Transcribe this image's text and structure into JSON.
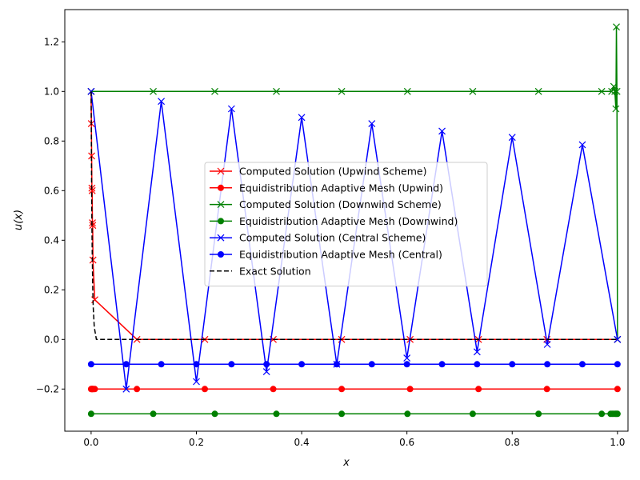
{
  "chart_data": {
    "type": "line",
    "title": "",
    "xlabel": "x",
    "ylabel": "u(x)",
    "xlim": [
      -0.05,
      1.02
    ],
    "ylim": [
      -0.37,
      1.33
    ],
    "x_ticks": [
      0.0,
      0.2,
      0.4,
      0.6,
      0.8,
      1.0
    ],
    "x_tick_labels": [
      "0.0",
      "0.2",
      "0.4",
      "0.6",
      "0.8",
      "1.0"
    ],
    "y_ticks": [
      -0.2,
      0.0,
      0.2,
      0.4,
      0.6,
      0.8,
      1.0,
      1.2
    ],
    "y_tick_labels": [
      "−0.2",
      "0.0",
      "0.2",
      "0.4",
      "0.6",
      "0.8",
      "1.0",
      "1.2"
    ],
    "grid": false,
    "legend_position": "center",
    "series": [
      {
        "name": "Computed Solution (Upwind Scheme)",
        "color": "#ff0000",
        "marker": "x",
        "dash": false,
        "x": [
          0.0,
          0.0005,
          0.001,
          0.0015,
          0.002,
          0.0025,
          0.003,
          0.0035,
          0.007,
          0.087,
          0.216,
          0.346,
          0.476,
          0.606,
          0.736,
          0.866,
          1.0
        ],
        "y": [
          1.0,
          0.87,
          0.74,
          0.61,
          0.6,
          0.47,
          0.46,
          0.32,
          0.16,
          0.0,
          0.0,
          0.0,
          0.0,
          0.0,
          0.0,
          0.0,
          0.0
        ]
      },
      {
        "name": "Equidistribution Adaptive Mesh (Upwind)",
        "color": "#ff0000",
        "marker": "o",
        "dash": false,
        "x": [
          0.0,
          0.001,
          0.002,
          0.003,
          0.004,
          0.007,
          0.087,
          0.216,
          0.346,
          0.476,
          0.606,
          0.736,
          0.866,
          1.0
        ],
        "y": [
          -0.2,
          -0.2,
          -0.2,
          -0.2,
          -0.2,
          -0.2,
          -0.2,
          -0.2,
          -0.2,
          -0.2,
          -0.2,
          -0.2,
          -0.2,
          -0.2
        ]
      },
      {
        "name": "Computed Solution (Downwind Scheme)",
        "color": "#008000",
        "marker": "x",
        "dash": false,
        "x": [
          0.0,
          0.118,
          0.235,
          0.352,
          0.476,
          0.601,
          0.725,
          0.85,
          0.97,
          0.989,
          0.993,
          0.995,
          0.997,
          0.998,
          0.999,
          1.0
        ],
        "y": [
          1.0,
          1.0,
          1.0,
          1.0,
          1.0,
          1.0,
          1.0,
          1.0,
          1.0,
          1.0,
          1.02,
          1.0,
          0.93,
          1.26,
          1.0,
          0.0
        ]
      },
      {
        "name": "Equidistribution Adaptive Mesh (Downwind)",
        "color": "#008000",
        "marker": "o",
        "dash": false,
        "x": [
          0.0,
          0.118,
          0.235,
          0.352,
          0.476,
          0.601,
          0.725,
          0.85,
          0.97,
          0.987,
          0.99,
          0.993,
          0.996,
          0.998,
          1.0
        ],
        "y": [
          -0.3,
          -0.3,
          -0.3,
          -0.3,
          -0.3,
          -0.3,
          -0.3,
          -0.3,
          -0.3,
          -0.3,
          -0.3,
          -0.3,
          -0.3,
          -0.3,
          -0.3
        ]
      },
      {
        "name": "Computed Solution (Central Scheme)",
        "color": "#0000ff",
        "marker": "x",
        "dash": false,
        "x": [
          0.0,
          0.0667,
          0.1333,
          0.2,
          0.2667,
          0.3333,
          0.4,
          0.4667,
          0.5333,
          0.6,
          0.6667,
          0.7333,
          0.8,
          0.8667,
          0.9333,
          1.0
        ],
        "y": [
          1.0,
          -0.2,
          0.96,
          -0.17,
          0.93,
          -0.13,
          0.895,
          -0.1,
          0.87,
          -0.075,
          0.84,
          -0.05,
          0.815,
          -0.02,
          0.785,
          0.0
        ]
      },
      {
        "name": "Equidistribution Adaptive Mesh (Central)",
        "color": "#0000ff",
        "marker": "o",
        "dash": false,
        "x": [
          0.0,
          0.0667,
          0.1333,
          0.2,
          0.2667,
          0.3333,
          0.4,
          0.4667,
          0.5333,
          0.6,
          0.6667,
          0.7333,
          0.8,
          0.8667,
          0.9333,
          1.0
        ],
        "y": [
          -0.1,
          -0.1,
          -0.1,
          -0.1,
          -0.1,
          -0.1,
          -0.1,
          -0.1,
          -0.1,
          -0.1,
          -0.1,
          -0.1,
          -0.1,
          -0.1,
          -0.1,
          -0.1
        ]
      },
      {
        "name": "Exact Solution",
        "color": "#000000",
        "marker": "none",
        "dash": true,
        "x": [
          0.0,
          0.0005,
          0.001,
          0.0015,
          0.002,
          0.003,
          0.004,
          0.006,
          0.01,
          0.05,
          0.2,
          0.5,
          0.8,
          1.0
        ],
        "y": [
          1.0,
          0.78,
          0.6,
          0.47,
          0.37,
          0.22,
          0.13,
          0.05,
          0.0,
          0.0,
          0.0,
          0.0,
          0.0,
          0.0
        ]
      }
    ]
  }
}
